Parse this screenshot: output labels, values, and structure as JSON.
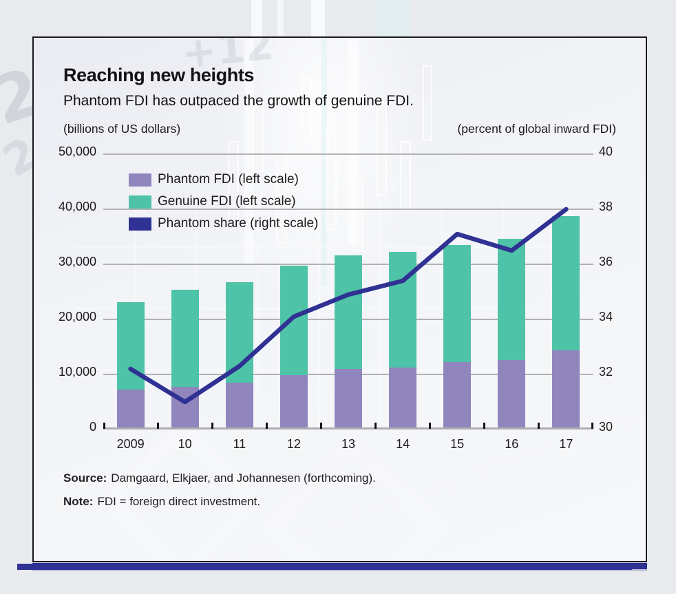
{
  "header": {
    "title": "Reaching new heights",
    "subtitle": "Phantom FDI has outpaced the growth of genuine FDI.",
    "left_axis_caption": "(billions of US dollars)",
    "right_axis_caption": "(percent of global inward FDI)"
  },
  "legend": {
    "position": "inside-top-left",
    "items": [
      {
        "label": "Phantom FDI (left scale)",
        "color": "#9185be"
      },
      {
        "label": "Genuine FDI (left scale)",
        "color": "#4fc3a7"
      },
      {
        "label": "Phantom share (right scale)",
        "color": "#2f3193"
      }
    ]
  },
  "chart_data": {
    "type": "combo",
    "subtype": "stacked-bar + line, dual axis",
    "categories": [
      "2009",
      "10",
      "11",
      "12",
      "13",
      "14",
      "15",
      "16",
      "17"
    ],
    "series": [
      {
        "name": "Phantom FDI (left scale)",
        "kind": "stacked-bar",
        "axis": "left",
        "color": "#9185be",
        "values": [
          7300,
          7700,
          8500,
          9900,
          11000,
          11200,
          12300,
          12600,
          14400
        ]
      },
      {
        "name": "Genuine FDI (left scale)",
        "kind": "stacked-bar",
        "axis": "left",
        "color": "#4fc3a7",
        "values": [
          15800,
          17700,
          18300,
          19800,
          20600,
          21100,
          21200,
          22000,
          24300
        ]
      },
      {
        "name": "Phantom share (right scale)",
        "kind": "line",
        "axis": "right",
        "color": "#2f3193",
        "values": [
          32.2,
          31.0,
          32.3,
          34.1,
          34.9,
          35.4,
          37.1,
          36.5,
          38.0
        ]
      }
    ],
    "left_axis": {
      "title": "(billions of US dollars)",
      "min": 0,
      "max": 50000,
      "tick_interval": 10000,
      "tick_labels": [
        "0",
        "10,000",
        "20,000",
        "30,000",
        "40,000",
        "50,000"
      ]
    },
    "right_axis": {
      "title": "(percent of global inward FDI)",
      "min": 30,
      "max": 40,
      "tick_interval": 2,
      "tick_labels": [
        "30",
        "32",
        "34",
        "36",
        "38",
        "40"
      ]
    },
    "grid": true,
    "title": "Reaching new heights",
    "subtitle": "Phantom FDI has outpaced the growth of genuine FDI."
  },
  "footer": {
    "source_label": "Source:",
    "source_text": "Damgaard, Elkjaer, and Johannesen (forthcoming).",
    "note_label": "Note:",
    "note_text": "FDI = foreign direct investment."
  },
  "colors": {
    "page_background": "#e8eaee",
    "card_background": "#f3f5f8",
    "card_border": "#1a1820",
    "accent_bar": "#2f3193",
    "gridline": "#b2b2b5",
    "text": "#1d1a1c"
  }
}
